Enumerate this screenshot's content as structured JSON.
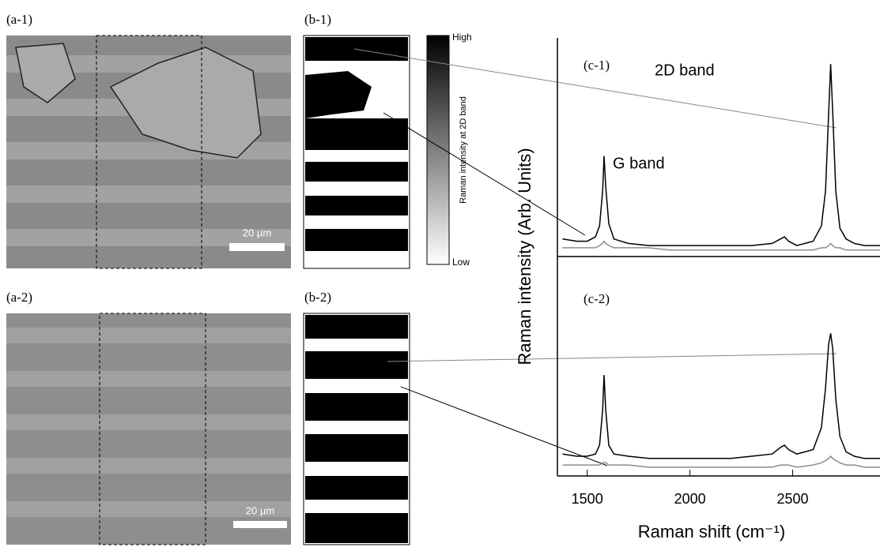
{
  "panels": {
    "a1": "(a-1)",
    "b1": "(b-1)",
    "a2": "(a-2)",
    "b2": "(b-2)",
    "c1": "(c-1)",
    "c2": "(c-2)"
  },
  "scale_bars": [
    "20 µm",
    "20 µm"
  ],
  "colorbar": {
    "high": "High",
    "low": "Low",
    "label": "Raman intensity at 2D band"
  },
  "annotations": {
    "d_band": "2D band",
    "g_band": "G band"
  },
  "shared_ylabel": "Raman intensity (Arb. Units)",
  "chart_data": [
    {
      "type": "line",
      "xlim": [
        1355,
        2925
      ],
      "ylim": [
        0,
        100
      ],
      "x": [
        1380,
        1450,
        1500,
        1540,
        1560,
        1575,
        1582,
        1590,
        1605,
        1630,
        1700,
        1800,
        1900,
        2000,
        2100,
        2200,
        2300,
        2400,
        2440,
        2460,
        2480,
        2520,
        2600,
        2640,
        2660,
        2675,
        2685,
        2695,
        2710,
        2730,
        2760,
        2800,
        2850,
        2925
      ],
      "series": [
        {
          "color": "#000000",
          "values": [
            8,
            7,
            7,
            9,
            14,
            30,
            46,
            32,
            15,
            8,
            6,
            5,
            5,
            5,
            5,
            5,
            5,
            6,
            8,
            9,
            7,
            5,
            7,
            14,
            30,
            65,
            88,
            66,
            30,
            13,
            8,
            6,
            5,
            5
          ]
        },
        {
          "color": "#8c8c8c",
          "values": [
            4,
            4,
            4,
            4,
            5,
            6,
            7,
            6,
            5,
            4,
            4,
            4,
            3,
            3,
            3,
            3,
            3,
            3,
            3,
            3,
            3,
            3,
            3,
            4,
            4,
            5,
            6,
            5,
            4,
            4,
            3,
            3,
            3,
            3
          ]
        }
      ]
    },
    {
      "type": "line",
      "xlim": [
        1355,
        2925
      ],
      "ylim": [
        0,
        100
      ],
      "xticks": [
        1500,
        2000,
        2500
      ],
      "xlabel": "Raman shift (cm⁻¹)",
      "x": [
        1380,
        1450,
        1500,
        1540,
        1560,
        1575,
        1582,
        1590,
        1605,
        1630,
        1700,
        1800,
        1900,
        2000,
        2100,
        2200,
        2300,
        2400,
        2440,
        2460,
        2480,
        2520,
        2600,
        2640,
        2660,
        2675,
        2685,
        2695,
        2710,
        2730,
        2760,
        2800,
        2850,
        2925
      ],
      "series": [
        {
          "color": "#000000",
          "values": [
            10,
            9,
            9,
            10,
            14,
            30,
            46,
            30,
            14,
            10,
            9,
            8,
            8,
            8,
            8,
            8,
            9,
            10,
            13,
            14,
            12,
            10,
            12,
            22,
            40,
            60,
            65,
            58,
            35,
            18,
            11,
            9,
            8,
            8
          ]
        },
        {
          "color": "#8c8c8c",
          "values": [
            5,
            5,
            5,
            5,
            5,
            6,
            6,
            6,
            5,
            5,
            5,
            4,
            4,
            4,
            4,
            4,
            4,
            4,
            5,
            5,
            5,
            4,
            5,
            6,
            7,
            8,
            9,
            8,
            7,
            6,
            5,
            5,
            4,
            4
          ]
        }
      ]
    }
  ]
}
